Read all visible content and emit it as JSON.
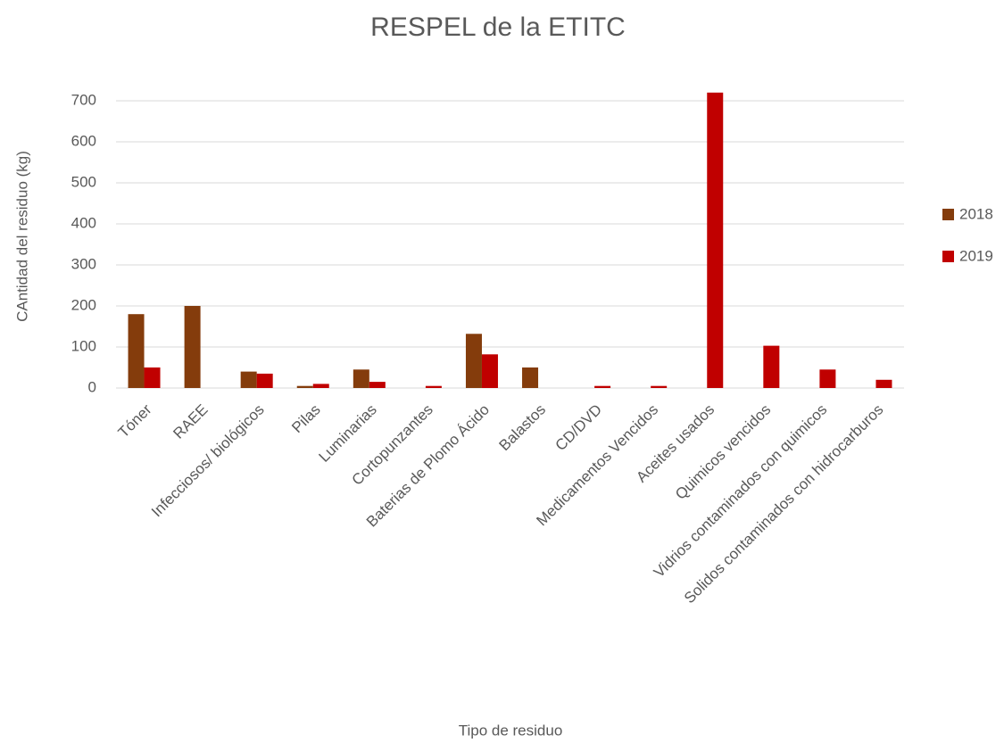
{
  "chart_data": {
    "type": "bar",
    "title": "RESPEL de la ETITC",
    "x_label": "Tipo de residuo",
    "y_label": "CAntidad del residuo (kg)",
    "categories": [
      "Tóner",
      "RAEE",
      "Infecciosos/ biológicos",
      "Pilas",
      "Luminarias",
      "Cortopunzantes",
      "Baterias de Plomo Ácido",
      "Balastos",
      "CD/DVD",
      "Medicamentos Vencidos",
      "Aceites usados",
      "Quimicos vencidos",
      "Vidrios contaminados con quimicos",
      "Solidos contaminados con hidrocarburos"
    ],
    "series": [
      {
        "name": "2018",
        "color": "#843c0c",
        "values": [
          180,
          200,
          40,
          5,
          45,
          0,
          132,
          50,
          0,
          0,
          0,
          0,
          0,
          0
        ]
      },
      {
        "name": "2019",
        "color": "#c00000",
        "values": [
          50,
          0,
          35,
          10,
          15,
          5,
          82,
          0,
          5,
          5,
          720,
          103,
          45,
          20
        ]
      }
    ],
    "ylim": [
      0,
      700
    ],
    "yticks": [
      0,
      100,
      200,
      300,
      400,
      500,
      600,
      700
    ],
    "grid": true,
    "legend": "right"
  }
}
